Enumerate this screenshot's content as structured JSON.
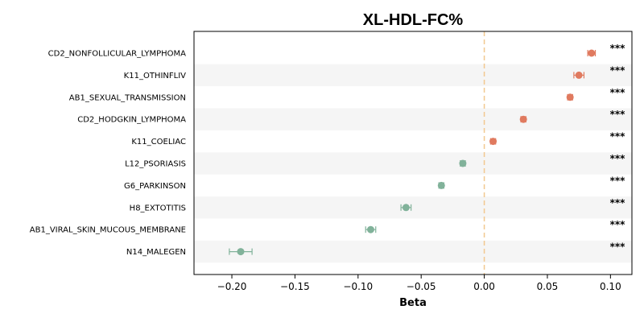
{
  "chart_data": {
    "type": "scatter",
    "title": "XL-HDL-FC%",
    "xlabel": "Beta",
    "xlim": [
      -0.23,
      0.117
    ],
    "xticks": [
      -0.2,
      -0.15,
      -0.1,
      -0.05,
      0.0,
      0.05,
      0.1
    ],
    "xtick_labels": [
      "−0.20",
      "−0.15",
      "−0.10",
      "−0.05",
      "0.00",
      "0.05",
      "0.10"
    ],
    "reference_line": 0.0,
    "colors": {
      "positive": "#e07a5f",
      "negative": "#81b29a",
      "reference": "#f2c88f",
      "band": "#f5f5f5"
    },
    "points": [
      {
        "label": "CD2_NONFOLLICULAR_LYMPHOMA",
        "beta": 0.085,
        "ci_low": 0.082,
        "ci_high": 0.088,
        "sig": "***"
      },
      {
        "label": "K11_OTHINFLIV",
        "beta": 0.075,
        "ci_low": 0.071,
        "ci_high": 0.079,
        "sig": "***"
      },
      {
        "label": "AB1_SEXUAL_TRANSMISSION",
        "beta": 0.068,
        "ci_low": 0.066,
        "ci_high": 0.07,
        "sig": "***"
      },
      {
        "label": "CD2_HODGKIN_LYMPHOMA",
        "beta": 0.031,
        "ci_low": 0.029,
        "ci_high": 0.033,
        "sig": "***"
      },
      {
        "label": "K11_COELIAC",
        "beta": 0.007,
        "ci_low": 0.005,
        "ci_high": 0.009,
        "sig": "***"
      },
      {
        "label": "L12_PSORIASIS",
        "beta": -0.017,
        "ci_low": -0.019,
        "ci_high": -0.015,
        "sig": "***"
      },
      {
        "label": "G6_PARKINSON",
        "beta": -0.034,
        "ci_low": -0.036,
        "ci_high": -0.032,
        "sig": "***"
      },
      {
        "label": "H8_EXTOTITIS",
        "beta": -0.062,
        "ci_low": -0.066,
        "ci_high": -0.058,
        "sig": "***"
      },
      {
        "label": "AB1_VIRAL_SKIN_MUCOUS_MEMBRANE",
        "beta": -0.09,
        "ci_low": -0.094,
        "ci_high": -0.086,
        "sig": "***"
      },
      {
        "label": "N14_MALEGEN",
        "beta": -0.193,
        "ci_low": -0.202,
        "ci_high": -0.184,
        "sig": "***"
      }
    ]
  }
}
